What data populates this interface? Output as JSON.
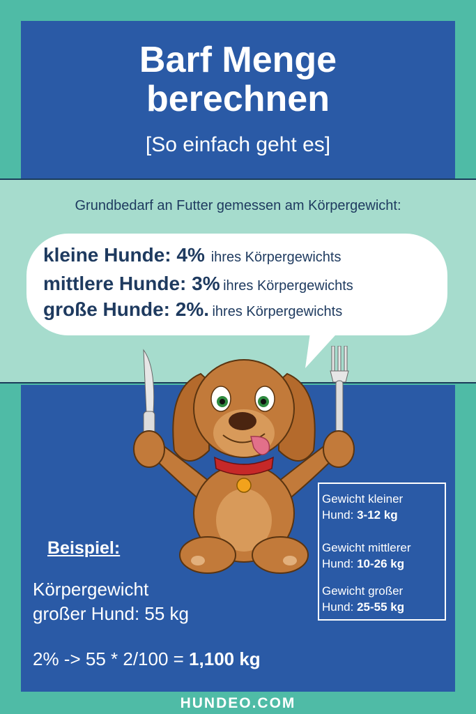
{
  "header": {
    "title_line1": "Barf Menge",
    "title_line2": "berechnen",
    "subtitle": "[So einfach geht es]"
  },
  "intro": "Grundbedarf an Futter gemessen am Körpergewicht:",
  "bubble": {
    "lines": [
      {
        "strong": "kleine Hunde: 4%",
        "rest": "ihres Körpergewichts"
      },
      {
        "strong": "mittlere Hunde: 3%",
        "rest": "ihres Körpergewichts"
      },
      {
        "strong": "große Hunde: 2%.",
        "rest": "ihres Körpergewichts"
      }
    ]
  },
  "example": {
    "label": "Beispiel:",
    "line1": "Körpergewicht",
    "line2": "großer Hund: 55 kg",
    "calc_prefix": "2% -> 55 * 2/100 = ",
    "calc_result": "1,100 kg"
  },
  "weights": [
    {
      "label": "Gewicht kleiner",
      "value_prefix": "Hund: ",
      "value": "3-12 kg"
    },
    {
      "label": "Gewicht mittlerer",
      "value_prefix": "Hund: ",
      "value": "10-26 kg"
    },
    {
      "label": "Gewicht großer",
      "value_prefix": "Hund: ",
      "value": "25-55 kg"
    }
  ],
  "footer": "HUNDEO.COM",
  "colors": {
    "background": "#4fbba6",
    "panel": "#2a5aa6",
    "band": "#a6dccd",
    "text_dark": "#1e3a5f",
    "dog": "#c27a3a"
  }
}
